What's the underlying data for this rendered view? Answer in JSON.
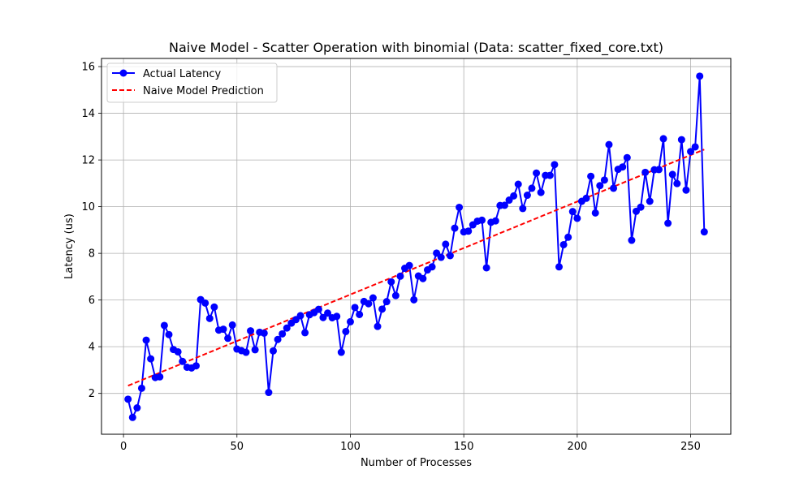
{
  "chart_data": {
    "type": "line",
    "title": "Naive Model - Scatter Operation with binomial (Data: scatter_fixed_core.txt)",
    "xlabel": "Number of Processes",
    "ylabel": "Latency (us)",
    "xlim": [
      -9.7,
      267.7
    ],
    "ylim": [
      0.25,
      16.35
    ],
    "xticks": [
      0,
      50,
      100,
      150,
      200,
      250
    ],
    "yticks": [
      2,
      4,
      6,
      8,
      10,
      12,
      14,
      16
    ],
    "xtick_labels": [
      "0",
      "50",
      "100",
      "150",
      "200",
      "250"
    ],
    "ytick_labels": [
      "2",
      "4",
      "6",
      "8",
      "10",
      "12",
      "14",
      "16"
    ],
    "grid": true,
    "legend_position": "top-left",
    "series": [
      {
        "name": "Actual Latency",
        "style": "line-with-markers",
        "color": "#0000ff",
        "x": [
          2,
          4,
          6,
          8,
          10,
          12,
          14,
          16,
          18,
          20,
          22,
          24,
          26,
          28,
          30,
          32,
          34,
          36,
          38,
          40,
          42,
          44,
          46,
          48,
          50,
          52,
          54,
          56,
          58,
          60,
          62,
          64,
          66,
          68,
          70,
          72,
          74,
          76,
          78,
          80,
          82,
          84,
          86,
          88,
          90,
          92,
          94,
          96,
          98,
          100,
          102,
          104,
          106,
          108,
          110,
          112,
          114,
          116,
          118,
          120,
          122,
          124,
          126,
          128,
          130,
          132,
          134,
          136,
          138,
          140,
          142,
          144,
          146,
          148,
          150,
          152,
          154,
          156,
          158,
          160,
          162,
          164,
          166,
          168,
          170,
          172,
          174,
          176,
          178,
          180,
          182,
          184,
          186,
          188,
          190,
          192,
          194,
          196,
          198,
          200,
          202,
          204,
          206,
          208,
          210,
          212,
          214,
          216,
          218,
          220,
          222,
          224,
          226,
          228,
          230,
          232,
          234,
          236,
          238,
          240,
          242,
          244,
          246,
          248,
          250,
          252,
          254,
          256
        ],
        "y": [
          1.75,
          0.97,
          1.38,
          2.22,
          4.28,
          3.48,
          2.68,
          2.71,
          4.91,
          4.52,
          3.88,
          3.78,
          3.37,
          3.12,
          3.09,
          3.18,
          6.02,
          5.87,
          5.21,
          5.7,
          4.71,
          4.75,
          4.36,
          4.93,
          3.9,
          3.83,
          3.76,
          4.68,
          3.87,
          4.62,
          4.58,
          2.04,
          3.82,
          4.31,
          4.55,
          4.8,
          5.01,
          5.16,
          5.33,
          4.6,
          5.37,
          5.46,
          5.6,
          5.25,
          5.44,
          5.24,
          5.3,
          3.76,
          4.65,
          5.07,
          5.68,
          5.38,
          5.94,
          5.84,
          6.09,
          4.87,
          5.61,
          5.93,
          6.78,
          6.19,
          7.02,
          7.36,
          7.48,
          6.01,
          7.03,
          6.92,
          7.29,
          7.42,
          8.01,
          7.83,
          8.39,
          7.9,
          9.08,
          9.97,
          8.92,
          8.95,
          9.22,
          9.38,
          9.42,
          7.38,
          9.33,
          9.39,
          10.05,
          10.06,
          10.28,
          10.46,
          10.96,
          9.92,
          10.49,
          10.79,
          11.44,
          10.61,
          11.34,
          11.34,
          11.8,
          7.42,
          8.37,
          8.69,
          9.79,
          9.5,
          10.23,
          10.36,
          11.3,
          9.73,
          10.9,
          11.14,
          12.66,
          10.79,
          11.6,
          11.7,
          12.1,
          8.56,
          9.8,
          9.98,
          11.47,
          10.23,
          11.58,
          11.59,
          12.91,
          9.29,
          11.38,
          10.99,
          12.87,
          10.71,
          12.36,
          12.56,
          15.59,
          8.92
        ]
      },
      {
        "name": "Naive Model Prediction",
        "style": "dashed-line",
        "color": "#ff0000",
        "x": [
          2,
          256
        ],
        "y": [
          2.33,
          12.45
        ]
      }
    ]
  }
}
